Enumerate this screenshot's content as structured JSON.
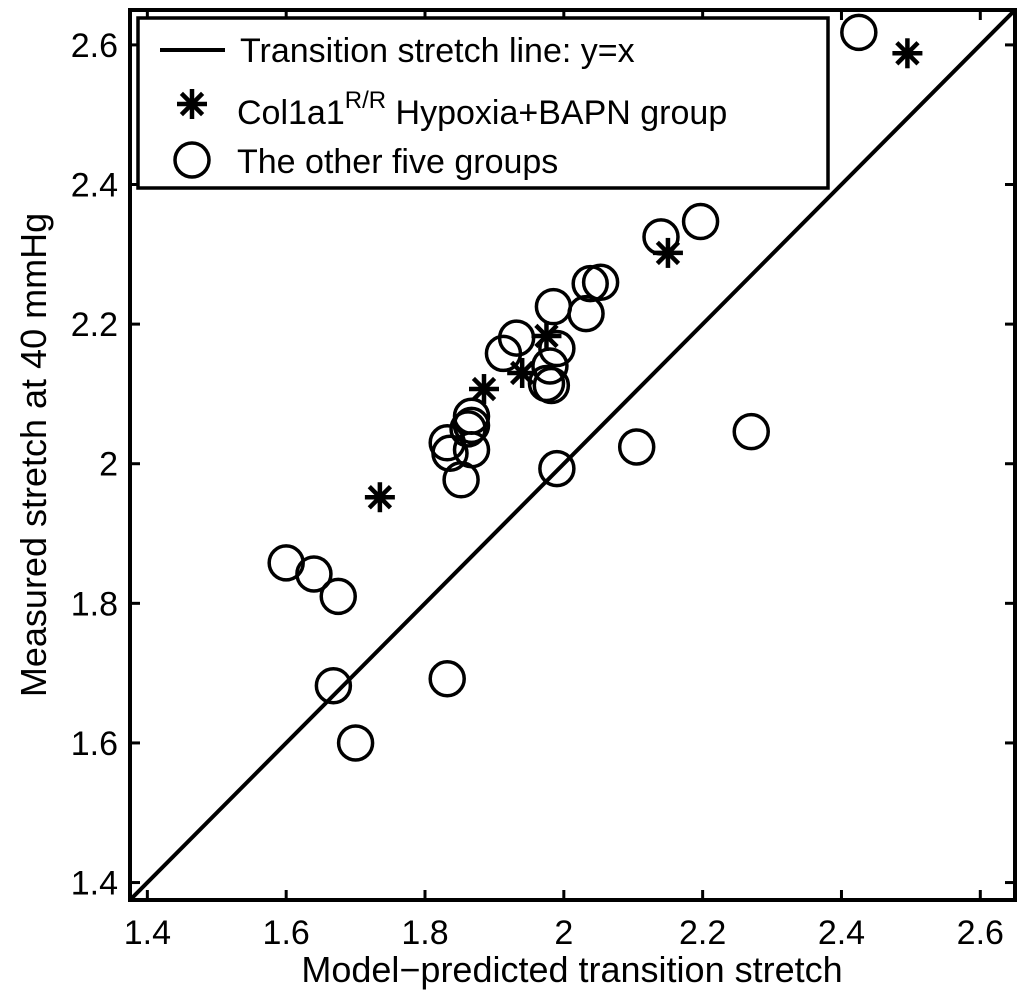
{
  "chart_data": {
    "type": "scatter",
    "xlabel": "Model−predicted transition stretch",
    "ylabel": "Measured stretch at 40 mmHg",
    "xlim": [
      1.375,
      2.65
    ],
    "ylim": [
      1.375,
      2.65
    ],
    "xticks": [
      1.4,
      1.6,
      1.8,
      2,
      2.2,
      2.4,
      2.6
    ],
    "yticks": [
      1.4,
      1.6,
      1.8,
      2,
      2.2,
      2.4,
      2.6
    ],
    "xtick_labels": [
      "1.4",
      "1.6",
      "1.8",
      "2",
      "2.2",
      "2.4",
      "2.6"
    ],
    "ytick_labels": [
      "1.4",
      "1.6",
      "1.8",
      "2",
      "2.2",
      "2.4",
      "2.6"
    ],
    "grid": false,
    "legend_position": "top-left",
    "legend": {
      "line_label": "Transition stretch line: y=x",
      "star_label_main": "Col1a1",
      "star_label_sup": "R/R",
      "star_label_rest": " Hypoxia+BAPN group",
      "circle_label": "The other five groups"
    },
    "series": [
      {
        "name": "Transition stretch line: y=x",
        "kind": "line",
        "x": [
          1.375,
          2.65
        ],
        "y": [
          1.375,
          2.65
        ]
      },
      {
        "name": "Col1a1 R/R Hypoxia+BAPN group",
        "kind": "star",
        "x": [
          1.735,
          1.885,
          1.94,
          1.975,
          2.15,
          2.495
        ],
        "y": [
          1.952,
          2.107,
          2.13,
          2.183,
          2.302,
          2.588
        ]
      },
      {
        "name": "The other five groups",
        "kind": "circle",
        "x": [
          1.6,
          1.64,
          1.675,
          1.668,
          1.7,
          1.832,
          1.832,
          1.836,
          1.852,
          1.862,
          1.867,
          1.867,
          1.867,
          1.985,
          1.913,
          1.932,
          1.975,
          1.99,
          1.982,
          1.98,
          2.032,
          2.038,
          2.053,
          2.14,
          2.197,
          1.99,
          2.105,
          2.27,
          2.425
        ],
        "y": [
          1.858,
          1.842,
          1.81,
          1.682,
          1.6,
          1.692,
          2.03,
          2.015,
          1.977,
          2.05,
          2.068,
          2.055,
          2.02,
          2.225,
          2.158,
          2.18,
          2.115,
          2.165,
          2.112,
          2.14,
          2.215,
          2.258,
          2.26,
          2.325,
          2.347,
          1.993,
          2.024,
          2.046,
          2.618
        ]
      }
    ]
  }
}
